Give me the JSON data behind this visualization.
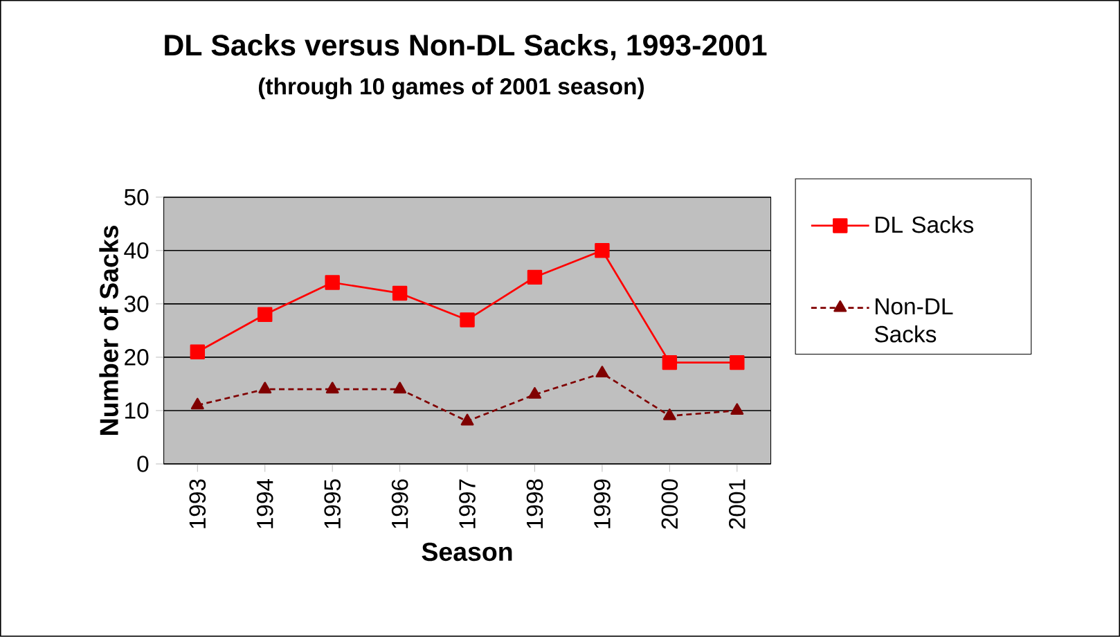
{
  "chart_data": {
    "type": "line",
    "title": "DL Sacks versus Non-DL Sacks, 1993-2001",
    "subtitle": "(through 10 games of 2001 season)",
    "xlabel": "Season",
    "ylabel": "Number of Sacks",
    "categories": [
      "1993",
      "1994",
      "1995",
      "1996",
      "1997",
      "1998",
      "1999",
      "2000",
      "2001"
    ],
    "series": [
      {
        "name": "DL Sacks",
        "color": "#ff0000",
        "marker": "square",
        "line_style": "solid",
        "values": [
          21,
          28,
          34,
          32,
          27,
          35,
          40,
          19,
          19
        ]
      },
      {
        "name": "Non-DL Sacks",
        "color": "#800000",
        "marker": "triangle",
        "line_style": "dashed",
        "values": [
          11,
          14,
          14,
          14,
          8,
          13,
          17,
          9,
          10
        ]
      }
    ],
    "ylim": [
      0,
      50
    ],
    "yticks": [
      0,
      10,
      20,
      30,
      40,
      50
    ],
    "grid": "y",
    "legend": "right"
  }
}
